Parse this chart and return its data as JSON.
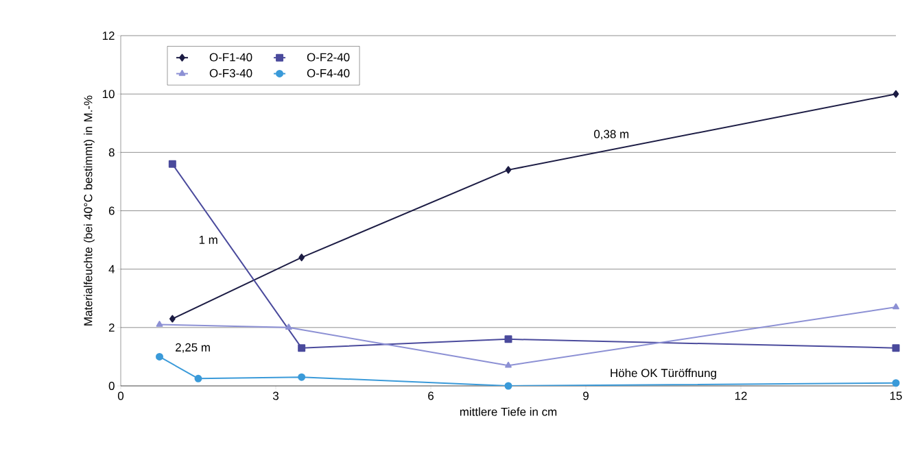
{
  "chart_data": {
    "type": "line",
    "xlabel": "mittlere Tiefe in cm",
    "ylabel": "Materialfeuchte (bei 40°C bestimmt) in M.-%",
    "xlim": [
      0,
      15
    ],
    "xticks": [
      0,
      3,
      6,
      9,
      12,
      15
    ],
    "ylim": [
      0,
      12
    ],
    "yticks": [
      0,
      2,
      4,
      6,
      8,
      10,
      12
    ],
    "grid": "y",
    "legend": "top left",
    "line_style": "solid",
    "series": [
      {
        "name": "O-F1-40",
        "color": "#1c1c44",
        "marker": "diamond",
        "x": [
          1,
          3.5,
          7.5,
          15
        ],
        "values": [
          2.3,
          4.4,
          7.4,
          10
        ]
      },
      {
        "name": "O-F2-40",
        "color": "#4a4a9c",
        "marker": "square",
        "x": [
          1,
          3.5,
          7.5,
          15
        ],
        "values": [
          7.6,
          1.3,
          1.6,
          1.3
        ]
      },
      {
        "name": "O-F3-40",
        "color": "#8c90d4",
        "marker": "triangle",
        "x": [
          0.75,
          3.25,
          7.5,
          15
        ],
        "values": [
          2.1,
          2.0,
          0.7,
          2.7
        ]
      },
      {
        "name": "O-F4-40",
        "color": "#3a9ad9",
        "marker": "circle",
        "x": [
          0.75,
          1.5,
          3.5,
          7.5,
          15
        ],
        "values": [
          1.0,
          0.25,
          0.3,
          0,
          0.1
        ]
      }
    ],
    "annotations": [
      "0,38 m",
      "1 m",
      "2,25 m",
      "Höhe OK Türöffnung"
    ]
  }
}
